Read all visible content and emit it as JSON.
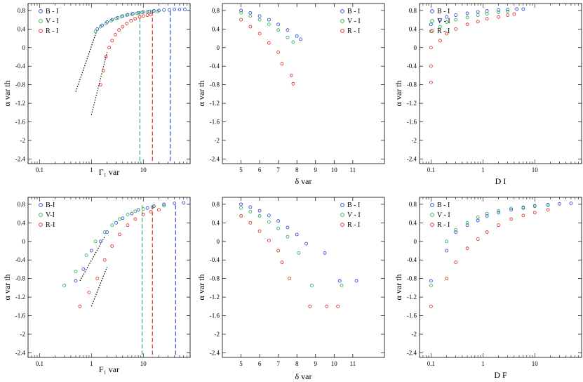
{
  "figure": {
    "title": "",
    "series_colors": {
      "B-I": "#1f3fd6",
      "V-I": "#1faa4a",
      "R-I": "#e0201b"
    },
    "marker": "open-circle"
  },
  "chart_data": [
    {
      "type": "scatter",
      "panel": "top-left",
      "xscale": "log",
      "xlabel": "Γ₁ var",
      "ylabel": "α var th",
      "xlim": [
        0.06,
        80
      ],
      "ylim": [
        -2.5,
        0.95
      ],
      "xticks": [
        0.1,
        1,
        10
      ],
      "xtick_labels": [
        "0.1",
        "1",
        "10"
      ],
      "yticks": [
        0.8,
        0.4,
        0,
        -0.4,
        -0.8,
        -1.2,
        -1.6,
        -2,
        -2.4
      ],
      "ytick_labels": [
        "0.8",
        "0.4",
        "0",
        "-0.4",
        "-0.8",
        "-1.2",
        "-1.6",
        "-2",
        "-2.4"
      ],
      "legend": {
        "position": "top-left",
        "entries": [
          "B - I",
          "V - I",
          "R - I"
        ]
      },
      "series": [
        {
          "name": "B-I",
          "x": [
            1.3,
            1.6,
            2,
            2.5,
            3.2,
            4,
            5,
            6.3,
            8,
            10,
            13,
            16,
            20,
            25,
            32,
            40,
            50,
            63
          ],
          "y": [
            0.4,
            0.48,
            0.55,
            0.6,
            0.64,
            0.68,
            0.71,
            0.73,
            0.75,
            0.77,
            0.78,
            0.79,
            0.8,
            0.81,
            0.81,
            0.82,
            0.82,
            0.82
          ]
        },
        {
          "name": "V-I",
          "x": [
            1.2,
            1.5,
            1.9,
            2.4,
            3,
            3.8,
            4.8,
            6,
            7.6,
            9.5,
            12,
            15,
            19
          ],
          "y": [
            0.35,
            0.45,
            0.52,
            0.58,
            0.63,
            0.67,
            0.7,
            0.72,
            0.74,
            0.76,
            0.77,
            0.78,
            0.78
          ]
        },
        {
          "name": "R-I",
          "x": [
            1.5,
            1.7,
            1.9,
            2.2,
            2.5,
            2.9,
            3.4,
            4,
            4.8,
            5.8,
            7,
            8.5,
            10,
            12,
            14
          ],
          "y": [
            -0.8,
            -0.5,
            -0.2,
            0,
            0.15,
            0.28,
            0.38,
            0.45,
            0.52,
            0.58,
            0.62,
            0.66,
            0.68,
            0.7,
            0.71
          ]
        }
      ],
      "fit_lines": [
        {
          "x": [
            0.5,
            1.3
          ],
          "y": [
            -0.95,
            0.4
          ]
        },
        {
          "x": [
            1,
            2
          ],
          "y": [
            -1.45,
            -0.1
          ]
        }
      ],
      "vertical_lines": [
        {
          "x": 8.6,
          "series": "V-I"
        },
        {
          "x": 15,
          "series": "R-I"
        },
        {
          "x": 33,
          "series": "B-I"
        }
      ]
    },
    {
      "type": "scatter",
      "panel": "top-middle",
      "xscale": "linear",
      "xlabel": "δ var",
      "ylabel": "α var th",
      "xlim": [
        4,
        12.7
      ],
      "ylim": [
        -2.5,
        0.95
      ],
      "xticks": [
        5,
        6,
        7,
        8,
        9,
        10,
        11
      ],
      "xtick_labels": [
        "5",
        "6",
        "7",
        "8",
        "9",
        "10",
        "11"
      ],
      "yticks": [
        0.8,
        0.4,
        0,
        -0.4,
        -0.8,
        -1.2,
        -1.6,
        -2,
        -2.4
      ],
      "ytick_labels": [
        "0.8",
        "0.4",
        "0",
        "-0.4",
        "-0.8",
        "-1.2",
        "-1.6",
        "-2",
        "-2.4"
      ],
      "legend": {
        "position": "top-right",
        "entries": [
          "B - I",
          "V - I",
          "R - I"
        ]
      },
      "series": [
        {
          "name": "B-I",
          "x": [
            5,
            5.5,
            6,
            6.5,
            7,
            7.5,
            8,
            8.2
          ],
          "y": [
            0.8,
            0.75,
            0.68,
            0.6,
            0.5,
            0.38,
            0.25,
            0.18
          ]
        },
        {
          "name": "V-I",
          "x": [
            5,
            5.5,
            6,
            6.5,
            7,
            7.5,
            7.8
          ],
          "y": [
            0.75,
            0.68,
            0.6,
            0.5,
            0.38,
            0.22,
            0.12
          ]
        },
        {
          "name": "R-I",
          "x": [
            5,
            5.5,
            6,
            6.5,
            7,
            7.2,
            7.7,
            7.8
          ],
          "y": [
            0.6,
            0.45,
            0.3,
            0.1,
            -0.1,
            -0.35,
            -0.6,
            -0.78
          ]
        }
      ]
    },
    {
      "type": "scatter",
      "panel": "top-right",
      "xscale": "log",
      "xlabel": "D I",
      "ylabel": "α var th",
      "xlim": [
        0.06,
        80
      ],
      "ylim": [
        -2.5,
        0.95
      ],
      "xticks": [
        0.1,
        1,
        10
      ],
      "xtick_labels": [
        "0.1",
        "1",
        "10"
      ],
      "yticks": [
        0.8,
        0.4,
        0,
        -0.4,
        -0.8,
        -1.2,
        -1.6,
        -2,
        -2.4
      ],
      "ytick_labels": [
        "0.8",
        "0.4",
        "0",
        "-0.4",
        "-0.8",
        "-1.2",
        "-1.6",
        "-2",
        "-2.4"
      ],
      "legend": {
        "position": "top-left",
        "entries": [
          "B - I",
          "V - I",
          "R - I"
        ]
      },
      "series": [
        {
          "name": "B-I",
          "x": [
            0.1,
            0.15,
            0.2,
            0.3,
            0.5,
            0.8,
            1.2,
            2,
            3,
            4.5,
            6
          ],
          "y": [
            0.5,
            0.6,
            0.66,
            0.7,
            0.74,
            0.77,
            0.79,
            0.81,
            0.82,
            0.83,
            0.83
          ]
        },
        {
          "name": "V-I",
          "x": [
            0.1,
            0.15,
            0.2,
            0.3,
            0.5,
            0.8,
            1.2,
            2,
            3
          ],
          "y": [
            0.35,
            0.45,
            0.55,
            0.6,
            0.65,
            0.7,
            0.73,
            0.76,
            0.78
          ]
        },
        {
          "name": "R-I",
          "x": [
            0.1,
            0.1,
            0.1,
            0.15,
            0.2,
            0.3,
            0.5,
            0.8,
            1.2,
            2,
            3,
            4
          ],
          "y": [
            -0.75,
            -0.4,
            0,
            0.15,
            0.3,
            0.4,
            0.5,
            0.56,
            0.62,
            0.66,
            0.7,
            0.72
          ]
        }
      ]
    },
    {
      "type": "scatter",
      "panel": "bottom-left",
      "xscale": "log",
      "xlabel": "F₁ var",
      "ylabel": "α var th",
      "xlim": [
        0.06,
        80
      ],
      "ylim": [
        -2.5,
        0.95
      ],
      "xticks": [
        0.1,
        1,
        10
      ],
      "xtick_labels": [
        "0.1",
        "1",
        "10"
      ],
      "yticks": [
        0.8,
        0.4,
        0,
        -0.4,
        -0.8,
        -1.2,
        -1.6,
        -2,
        -2.4
      ],
      "ytick_labels": [
        "0.8",
        "0.4",
        "0",
        "-0.4",
        "-0.8",
        "-1.2",
        "-1.6",
        "-2",
        "-2.4"
      ],
      "legend": {
        "position": "top-left",
        "entries": [
          "B-I",
          "V-I",
          "R-I"
        ]
      },
      "series": [
        {
          "name": "B-I",
          "x": [
            0.5,
            0.7,
            1,
            1.5,
            2,
            3,
            4,
            6,
            8,
            12,
            16,
            25,
            40,
            60
          ],
          "y": [
            -0.85,
            -0.6,
            -0.2,
            0,
            0.2,
            0.4,
            0.5,
            0.6,
            0.68,
            0.72,
            0.76,
            0.8,
            0.82,
            0.83
          ]
        },
        {
          "name": "V-I",
          "x": [
            0.3,
            0.5,
            0.8,
            1.2,
            1.8,
            2.5,
            3.5,
            5,
            7,
            10,
            15,
            25
          ],
          "y": [
            -0.95,
            -0.65,
            -0.3,
            0,
            0.2,
            0.35,
            0.48,
            0.58,
            0.65,
            0.7,
            0.74,
            0.77
          ]
        },
        {
          "name": "R-I",
          "x": [
            0.6,
            0.9,
            1.3,
            1.8,
            2.5,
            3.5,
            5,
            7,
            10,
            14,
            20
          ],
          "y": [
            -1.4,
            -1.1,
            -0.8,
            -0.4,
            -0.1,
            0.15,
            0.35,
            0.48,
            0.58,
            0.64,
            0.68
          ]
        }
      ],
      "fit_lines": [
        {
          "x": [
            0.6,
            1.8
          ],
          "y": [
            -0.85,
            0.1
          ]
        },
        {
          "x": [
            1,
            2
          ],
          "y": [
            -1.4,
            -0.55
          ]
        }
      ],
      "vertical_lines": [
        {
          "x": 9.5,
          "series": "V-I"
        },
        {
          "x": 15,
          "series": "R-I"
        },
        {
          "x": 42,
          "series": "B-I"
        }
      ]
    },
    {
      "type": "scatter",
      "panel": "bottom-middle",
      "xscale": "linear",
      "xlabel": "δ var",
      "ylabel": "α var th",
      "xlim": [
        4,
        12.7
      ],
      "ylim": [
        -2.5,
        0.95
      ],
      "xticks": [
        5,
        6,
        7,
        8,
        9,
        10,
        11
      ],
      "xtick_labels": [
        "5",
        "6",
        "7",
        "8",
        "9",
        "10",
        "11"
      ],
      "yticks": [
        0.8,
        0.4,
        0,
        -0.4,
        -0.8,
        -1.2,
        -1.6,
        -2,
        -2.4
      ],
      "ytick_labels": [
        "0.8",
        "0.4",
        "0",
        "-0.4",
        "-0.8",
        "-1.2",
        "-1.6",
        "-2",
        "-2.4"
      ],
      "legend": {
        "position": "top-right",
        "entries": [
          "B - I",
          "V - I",
          "R - I"
        ]
      },
      "series": [
        {
          "name": "B-I",
          "x": [
            5,
            5.5,
            6,
            6.5,
            7,
            7.5,
            8,
            8.5,
            9.5,
            10.3,
            11.2
          ],
          "y": [
            0.8,
            0.74,
            0.66,
            0.56,
            0.44,
            0.3,
            0.15,
            -0.05,
            -0.25,
            -0.85,
            -0.85
          ]
        },
        {
          "name": "V-I",
          "x": [
            5,
            5.5,
            6,
            6.5,
            7,
            7.5,
            8.1,
            8.8,
            10.4
          ],
          "y": [
            0.72,
            0.64,
            0.55,
            0.42,
            0.28,
            0.1,
            -0.25,
            -0.95,
            -0.95
          ]
        },
        {
          "name": "R-I",
          "x": [
            5,
            5.5,
            6,
            6.5,
            7,
            7.2,
            7.6,
            8.7,
            9.6,
            10.2
          ],
          "y": [
            0.55,
            0.4,
            0.22,
            0.02,
            -0.2,
            -0.45,
            -0.8,
            -1.4,
            -1.4,
            -1.4
          ]
        }
      ]
    },
    {
      "type": "scatter",
      "panel": "bottom-right",
      "xscale": "log",
      "xlabel": "D F",
      "ylabel": "α var th",
      "xlim": [
        0.06,
        80
      ],
      "ylim": [
        -2.5,
        0.95
      ],
      "xticks": [
        0.1,
        1,
        10
      ],
      "xtick_labels": [
        "0.1",
        "1",
        "10"
      ],
      "yticks": [
        0.8,
        0.4,
        0,
        -0.4,
        -0.8,
        -1.2,
        -1.6,
        -2,
        -2.4
      ],
      "ytick_labels": [
        "0.8",
        "0.4",
        "0",
        "-0.4",
        "-0.8",
        "-1.2",
        "-1.6",
        "-2",
        "-2.4"
      ],
      "legend": {
        "position": "top-left",
        "entries": [
          "B - I",
          "V - I",
          "R - I"
        ]
      },
      "series": [
        {
          "name": "B-I",
          "x": [
            0.1,
            0.2,
            0.3,
            0.5,
            0.8,
            1.2,
            2,
            3.5,
            6,
            10,
            18,
            30,
            50
          ],
          "y": [
            -0.85,
            -0.2,
            0.2,
            0.35,
            0.45,
            0.55,
            0.62,
            0.68,
            0.72,
            0.76,
            0.79,
            0.81,
            0.82
          ]
        },
        {
          "name": "V-I",
          "x": [
            0.1,
            0.2,
            0.3,
            0.5,
            0.8,
            1.2,
            2,
            3.5,
            6,
            10,
            18
          ],
          "y": [
            -0.95,
            0,
            0.25,
            0.4,
            0.52,
            0.6,
            0.66,
            0.71,
            0.74,
            0.77,
            0.78
          ]
        },
        {
          "name": "R-I",
          "x": [
            0.1,
            0.2,
            0.3,
            0.5,
            0.8,
            1.2,
            2,
            3.5,
            6,
            10,
            18
          ],
          "y": [
            -1.4,
            -0.8,
            -0.45,
            -0.15,
            0.05,
            0.2,
            0.35,
            0.48,
            0.56,
            0.62,
            0.68
          ]
        }
      ]
    }
  ]
}
